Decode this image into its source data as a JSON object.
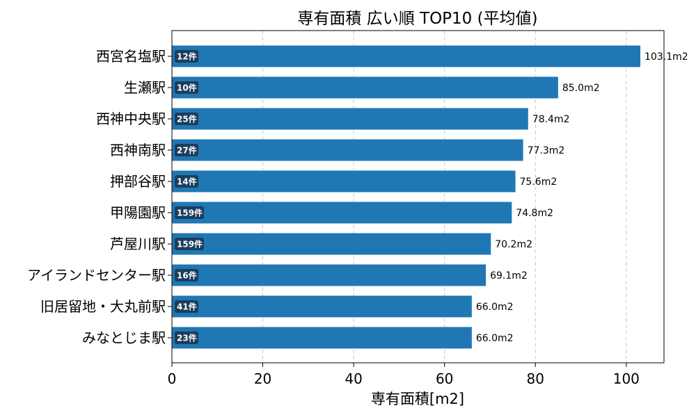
{
  "chart_data": {
    "type": "bar",
    "orientation": "horizontal",
    "title": "専有面積 広い順 TOP10 (平均値)",
    "xlabel": "専有面積[m2]",
    "ylabel": "",
    "xlim": [
      0,
      108.3
    ],
    "xticks": [
      0,
      20,
      40,
      60,
      80,
      100
    ],
    "grid": "x, dashed",
    "categories": [
      "西宮名塩駅",
      "生瀬駅",
      "西神中央駅",
      "西神南駅",
      "押部谷駅",
      "甲陽園駅",
      "芦屋川駅",
      "アイランドセンター駅",
      "旧居留地・大丸前駅",
      "みなとじま駅"
    ],
    "values": [
      103.1,
      85.0,
      78.4,
      77.3,
      75.6,
      74.8,
      70.2,
      69.1,
      66.0,
      66.0
    ],
    "value_labels": [
      "103.1m2",
      "85.0m2",
      "78.4m2",
      "77.3m2",
      "75.6m2",
      "74.8m2",
      "70.2m2",
      "69.1m2",
      "66.0m2",
      "66.0m2"
    ],
    "counts": [
      "12件",
      "10件",
      "25件",
      "27件",
      "14件",
      "159件",
      "159件",
      "16件",
      "41件",
      "23件"
    ],
    "bar_color": "#1f77b4",
    "badge_color": "#1a3d5c"
  }
}
